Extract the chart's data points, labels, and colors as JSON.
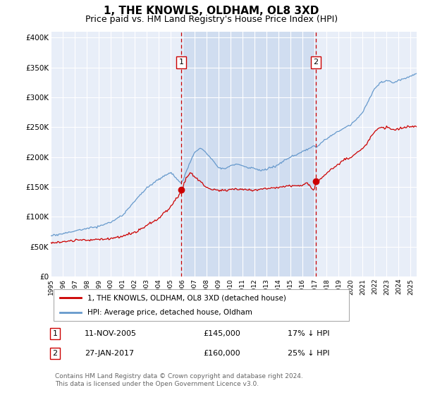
{
  "title": "1, THE KNOWLS, OLDHAM, OL8 3XD",
  "subtitle": "Price paid vs. HM Land Registry's House Price Index (HPI)",
  "ylabel_ticks": [
    "£0",
    "£50K",
    "£100K",
    "£150K",
    "£200K",
    "£250K",
    "£300K",
    "£350K",
    "£400K"
  ],
  "ytick_values": [
    0,
    50000,
    100000,
    150000,
    200000,
    250000,
    300000,
    350000,
    400000
  ],
  "ylim": [
    0,
    410000
  ],
  "xlim_start": 1995.0,
  "xlim_end": 2025.5,
  "background_color": "#ffffff",
  "plot_bg_color": "#e8eef8",
  "shade_color": "#d0ddf0",
  "grid_color": "#ffffff",
  "red_line_color": "#cc0000",
  "blue_line_color": "#6699cc",
  "vline_color": "#cc0000",
  "marker1_x": 2005.87,
  "marker1_y": 145000,
  "marker2_x": 2017.08,
  "marker2_y": 160000,
  "annotation1_label": "1",
  "annotation2_label": "2",
  "legend_entry1": "1, THE KNOWLS, OLDHAM, OL8 3XD (detached house)",
  "legend_entry2": "HPI: Average price, detached house, Oldham",
  "table_row1_num": "1",
  "table_row1_date": "11-NOV-2005",
  "table_row1_price": "£145,000",
  "table_row1_hpi": "17% ↓ HPI",
  "table_row2_num": "2",
  "table_row2_date": "27-JAN-2017",
  "table_row2_price": "£160,000",
  "table_row2_hpi": "25% ↓ HPI",
  "footer": "Contains HM Land Registry data © Crown copyright and database right 2024.\nThis data is licensed under the Open Government Licence v3.0.",
  "title_fontsize": 11,
  "subtitle_fontsize": 9
}
